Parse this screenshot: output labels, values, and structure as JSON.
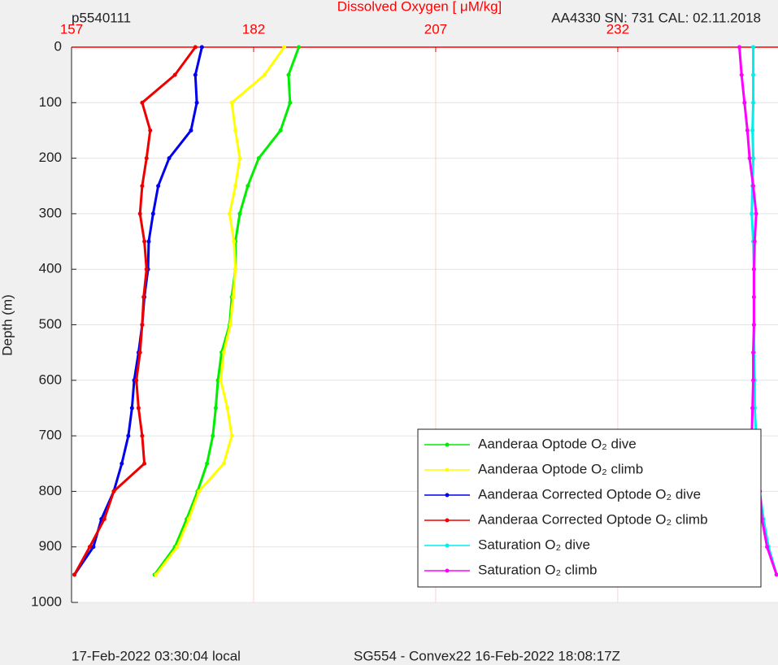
{
  "chart_data": {
    "type": "line",
    "title": "Dissolved Oxygen [ μM/kg]",
    "subtitle_left": "p5540111",
    "subtitle_right": "AA4330   SN: 731   CAL: 02.11.2018",
    "y_label": "Depth (m)",
    "footer_left": "17-Feb-2022 03:30:04 local",
    "footer_right": "SG554 - Convex22 16-Feb-2022 18:08:17Z",
    "xlim": [
      157,
      254
    ],
    "xticks": [
      157,
      182,
      207,
      232
    ],
    "ylim": [
      0,
      1000
    ],
    "yticks": [
      0,
      100,
      200,
      300,
      400,
      500,
      600,
      700,
      800,
      900,
      1000
    ],
    "y_reversed": true,
    "grid": true,
    "legend": "lower right",
    "depth": [
      0,
      50,
      100,
      150,
      200,
      250,
      300,
      350,
      400,
      450,
      500,
      550,
      600,
      650,
      700,
      750,
      800,
      850,
      900,
      950
    ],
    "series": [
      {
        "name": "Aanderaa Optode O₂ dive",
        "color": "#00ee00",
        "values": [
          188.2,
          186.8,
          187,
          185.7,
          182.7,
          181.2,
          180.1,
          179.5,
          179.5,
          179,
          178.7,
          177.6,
          177.1,
          176.8,
          176.4,
          175.6,
          174.3,
          172.8,
          171.2,
          168.4
        ]
      },
      {
        "name": "Aanderaa Optode O₂ climb",
        "color": "#ffff00",
        "values": [
          186.2,
          183.5,
          179,
          179.5,
          180.1,
          179.5,
          178.7,
          179.3,
          179.5,
          179.2,
          178.8,
          177.9,
          177.5,
          178.4,
          179,
          177.9,
          174.5,
          173.1,
          171.5,
          168.6
        ]
      },
      {
        "name": "Aanderaa Corrected Optode O₂ dive",
        "color": "#0000ee",
        "values": [
          174.9,
          174,
          174.2,
          173.4,
          170.4,
          168.9,
          168.2,
          167.6,
          167.5,
          167,
          166.7,
          166.2,
          165.6,
          165.3,
          164.8,
          163.9,
          162.8,
          161.1,
          160,
          157.4
        ]
      },
      {
        "name": "Aanderaa Corrected Optode O₂ climb",
        "color": "#ee0000",
        "values": [
          174,
          171.2,
          166.7,
          167.8,
          167.3,
          166.7,
          166.4,
          167,
          167.3,
          166.9,
          166.7,
          166.4,
          165.9,
          166.2,
          166.7,
          167,
          162.8,
          161.5,
          159.5,
          157.4
        ]
      },
      {
        "name": "Saturation O₂ dive",
        "color": "#00eeee",
        "values": [
          250.6,
          250.6,
          250.6,
          250.5,
          250.6,
          250.5,
          250.4,
          250.6,
          250.7,
          250.7,
          250.7,
          250.7,
          250.8,
          250.8,
          251,
          251.2,
          251.5,
          252,
          252.7,
          253.8
        ]
      },
      {
        "name": "Saturation O₂ climb",
        "color": "#ff00ff",
        "values": [
          248.7,
          249,
          249.4,
          249.8,
          250.1,
          250.6,
          251,
          250.8,
          250.7,
          250.7,
          250.7,
          250.6,
          250.6,
          250.5,
          250.4,
          250.8,
          251.5,
          251.8,
          252.5,
          253.8
        ]
      }
    ]
  }
}
